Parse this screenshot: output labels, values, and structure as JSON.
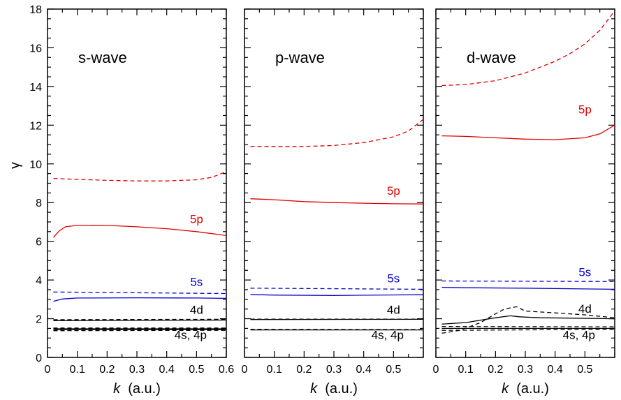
{
  "chart_data": {
    "type": "line",
    "ylabel": "γ",
    "ylim": [
      0,
      18
    ],
    "yticks": [
      "0",
      "2",
      "4",
      "6",
      "8",
      "10",
      "12",
      "14",
      "16",
      "18"
    ],
    "xlabel_italic": "k",
    "xlabel_rest": "(a.u.)",
    "colors": {
      "5p": "#e00000",
      "5s": "#0000cc",
      "core": "#000000"
    },
    "panels": [
      {
        "title": "s-wave",
        "xlim": [
          0,
          0.6
        ],
        "xticks": [
          "0",
          "0.1",
          "0.2",
          "0.3",
          "0.4",
          "0.5",
          "0.6"
        ],
        "series": [
          {
            "group": "5p",
            "dashed": true,
            "x": [
              0.02,
              0.1,
              0.2,
              0.3,
              0.4,
              0.5,
              0.55,
              0.6
            ],
            "y": [
              9.25,
              9.2,
              9.15,
              9.12,
              9.12,
              9.18,
              9.3,
              9.6
            ]
          },
          {
            "group": "5p",
            "dashed": false,
            "x": [
              0.02,
              0.04,
              0.06,
              0.1,
              0.15,
              0.2,
              0.3,
              0.4,
              0.5,
              0.6
            ],
            "y": [
              6.2,
              6.55,
              6.75,
              6.82,
              6.83,
              6.82,
              6.75,
              6.65,
              6.5,
              6.3
            ]
          },
          {
            "group": "5s",
            "dashed": true,
            "x": [
              0.02,
              0.6
            ],
            "y": [
              3.38,
              3.3
            ]
          },
          {
            "group": "5s",
            "dashed": false,
            "x": [
              0.02,
              0.05,
              0.1,
              0.3,
              0.5,
              0.6
            ],
            "y": [
              2.9,
              3.02,
              3.07,
              3.08,
              3.07,
              3.05
            ]
          },
          {
            "group": "core",
            "dashed": true,
            "x": [
              0.02,
              0.6
            ],
            "y": [
              1.95,
              1.97
            ]
          },
          {
            "group": "core",
            "dashed": false,
            "x": [
              0.02,
              0.6
            ],
            "y": [
              1.9,
              1.93
            ]
          },
          {
            "group": "core",
            "dashed": true,
            "x": [
              0.02,
              0.6
            ],
            "y": [
              1.52,
              1.52
            ]
          },
          {
            "group": "core",
            "dashed": false,
            "x": [
              0.02,
              0.6
            ],
            "y": [
              1.48,
              1.48
            ]
          },
          {
            "group": "core",
            "dashed": true,
            "x": [
              0.02,
              0.6
            ],
            "y": [
              1.38,
              1.4
            ]
          },
          {
            "group": "core",
            "dashed": false,
            "x": [
              0.02,
              0.6
            ],
            "y": [
              1.44,
              1.44
            ]
          }
        ],
        "labels": [
          {
            "text": "5p",
            "group": "5p",
            "x": 0.5,
            "y": 6.95
          },
          {
            "text": "5s",
            "group": "5s",
            "x": 0.5,
            "y": 3.7
          },
          {
            "text": "4d",
            "group": "core",
            "x": 0.5,
            "y": 2.25
          },
          {
            "text": "4s, 4p",
            "group": "core",
            "x": 0.48,
            "y": 0.95
          }
        ]
      },
      {
        "title": "p-wave",
        "xlim": [
          0,
          0.6
        ],
        "xticks": [
          "0",
          "0.1",
          "0.2",
          "0.3",
          "0.4",
          "0.5"
        ],
        "series": [
          {
            "group": "5p",
            "dashed": true,
            "x": [
              0.02,
              0.1,
              0.2,
              0.3,
              0.4,
              0.5,
              0.55,
              0.6
            ],
            "y": [
              10.9,
              10.9,
              10.9,
              10.95,
              11.1,
              11.4,
              11.7,
              12.3
            ]
          },
          {
            "group": "5p",
            "dashed": false,
            "x": [
              0.02,
              0.1,
              0.2,
              0.3,
              0.4,
              0.5,
              0.6
            ],
            "y": [
              8.2,
              8.15,
              8.05,
              8.0,
              7.97,
              7.94,
              7.93
            ]
          },
          {
            "group": "5s",
            "dashed": true,
            "x": [
              0.02,
              0.6
            ],
            "y": [
              3.58,
              3.52
            ]
          },
          {
            "group": "5s",
            "dashed": false,
            "x": [
              0.02,
              0.1,
              0.3,
              0.5,
              0.6
            ],
            "y": [
              3.25,
              3.22,
              3.2,
              3.23,
              3.24
            ]
          },
          {
            "group": "core",
            "dashed": true,
            "x": [
              0.02,
              0.6
            ],
            "y": [
              1.98,
              1.98
            ]
          },
          {
            "group": "core",
            "dashed": false,
            "x": [
              0.02,
              0.6
            ],
            "y": [
              1.96,
              1.97
            ]
          },
          {
            "group": "core",
            "dashed": true,
            "x": [
              0.02,
              0.6
            ],
            "y": [
              1.45,
              1.44
            ]
          },
          {
            "group": "core",
            "dashed": false,
            "x": [
              0.02,
              0.6
            ],
            "y": [
              1.42,
              1.42
            ]
          }
        ],
        "labels": [
          {
            "text": "5p",
            "group": "5p",
            "x": 0.5,
            "y": 8.4
          },
          {
            "text": "5s",
            "group": "5s",
            "x": 0.5,
            "y": 3.88
          },
          {
            "text": "4d",
            "group": "core",
            "x": 0.5,
            "y": 2.25
          },
          {
            "text": "4s, 4p",
            "group": "core",
            "x": 0.48,
            "y": 0.95
          }
        ]
      },
      {
        "title": "d-wave",
        "xlim": [
          0,
          0.6
        ],
        "xticks": [
          "0",
          "0.1",
          "0.2",
          "0.3",
          "0.4",
          "0.5"
        ],
        "series": [
          {
            "group": "5p",
            "dashed": true,
            "x": [
              0.02,
              0.1,
              0.2,
              0.3,
              0.4,
              0.45,
              0.5,
              0.55,
              0.6
            ],
            "y": [
              14.05,
              14.1,
              14.3,
              14.7,
              15.3,
              15.7,
              16.2,
              16.9,
              17.9
            ]
          },
          {
            "group": "5p",
            "dashed": false,
            "x": [
              0.02,
              0.1,
              0.2,
              0.3,
              0.4,
              0.5,
              0.55,
              0.6
            ],
            "y": [
              11.45,
              11.42,
              11.35,
              11.28,
              11.25,
              11.35,
              11.55,
              12.0
            ]
          },
          {
            "group": "5s",
            "dashed": true,
            "x": [
              0.02,
              0.6
            ],
            "y": [
              3.95,
              3.92
            ]
          },
          {
            "group": "5s",
            "dashed": false,
            "x": [
              0.02,
              0.1,
              0.3,
              0.5,
              0.6
            ],
            "y": [
              3.62,
              3.6,
              3.58,
              3.54,
              3.52
            ]
          },
          {
            "group": "core",
            "dashed": false,
            "x": [
              0.02,
              0.1,
              0.2,
              0.25,
              0.28,
              0.35,
              0.45,
              0.6
            ],
            "y": [
              1.72,
              1.8,
              2.05,
              2.15,
              2.1,
              2.05,
              2.03,
              2.0
            ]
          },
          {
            "group": "core",
            "dashed": true,
            "x": [
              0.02,
              0.08,
              0.15,
              0.2,
              0.23,
              0.27,
              0.3,
              0.4,
              0.5,
              0.6
            ],
            "y": [
              1.25,
              1.4,
              1.8,
              2.25,
              2.5,
              2.62,
              2.4,
              2.3,
              2.2,
              2.05
            ]
          },
          {
            "group": "core",
            "dashed": true,
            "x": [
              0.02,
              0.6
            ],
            "y": [
              1.6,
              1.58
            ]
          },
          {
            "group": "core",
            "dashed": false,
            "x": [
              0.02,
              0.6
            ],
            "y": [
              1.5,
              1.5
            ]
          },
          {
            "group": "core",
            "dashed": true,
            "x": [
              0.02,
              0.6
            ],
            "y": [
              1.4,
              1.45
            ]
          }
        ],
        "labels": [
          {
            "text": "5p",
            "group": "5p",
            "x": 0.5,
            "y": 12.6
          },
          {
            "text": "5s",
            "group": "5s",
            "x": 0.5,
            "y": 4.2
          },
          {
            "text": "4d",
            "group": "core",
            "x": 0.5,
            "y": 2.3
          },
          {
            "text": "4s, 4p",
            "group": "core",
            "x": 0.48,
            "y": 0.95
          }
        ]
      }
    ]
  }
}
